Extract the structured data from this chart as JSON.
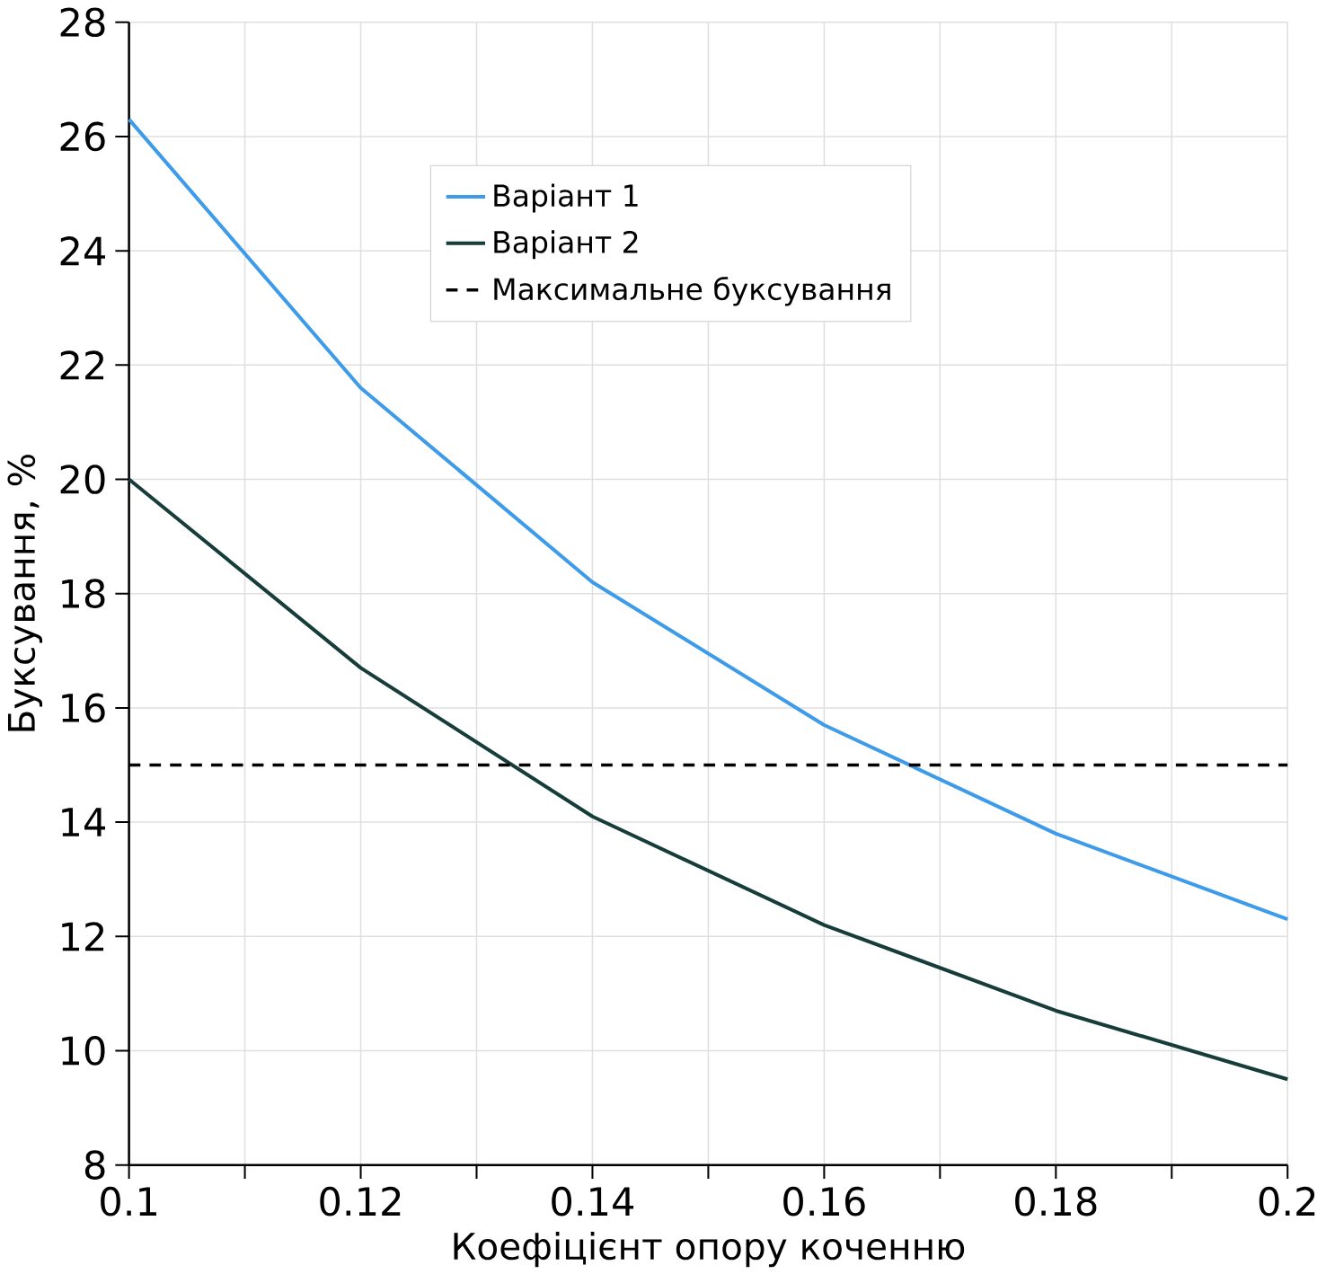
{
  "chart_data": {
    "type": "line",
    "xlabel": "Коефіцієнт опору коченню",
    "ylabel": "Буксування, %",
    "x": [
      0.1,
      0.12,
      0.14,
      0.16,
      0.18,
      0.2
    ],
    "series": [
      {
        "name": "Варіант 1",
        "color": "#3d9be9",
        "values": [
          26.3,
          21.6,
          18.2,
          15.7,
          13.8,
          12.3
        ]
      },
      {
        "name": "Варіант 2",
        "color": "#173d3a",
        "values": [
          20.0,
          16.7,
          14.1,
          12.2,
          10.7,
          9.5
        ]
      }
    ],
    "ref_lines": [
      {
        "axis": "y",
        "value": 15,
        "label": "Максимальне буксування",
        "color": "#000000",
        "line_style": "dashed"
      }
    ],
    "xlim": [
      0.1,
      0.2
    ],
    "ylim": [
      8,
      28
    ],
    "xticks": [
      0.1,
      {
        "value": 0.11,
        "label": null
      },
      0.12,
      {
        "value": 0.13,
        "label": null
      },
      0.14,
      {
        "value": 0.15,
        "label": null
      },
      0.16,
      {
        "value": 0.17,
        "label": null
      },
      0.18,
      {
        "value": 0.19,
        "label": null
      },
      0.2
    ],
    "yticks": [
      8,
      10,
      12,
      14,
      16,
      18,
      20,
      22,
      24,
      26,
      28
    ],
    "grid": true,
    "legend": "top right",
    "marker": "none",
    "line_style": "solid"
  }
}
